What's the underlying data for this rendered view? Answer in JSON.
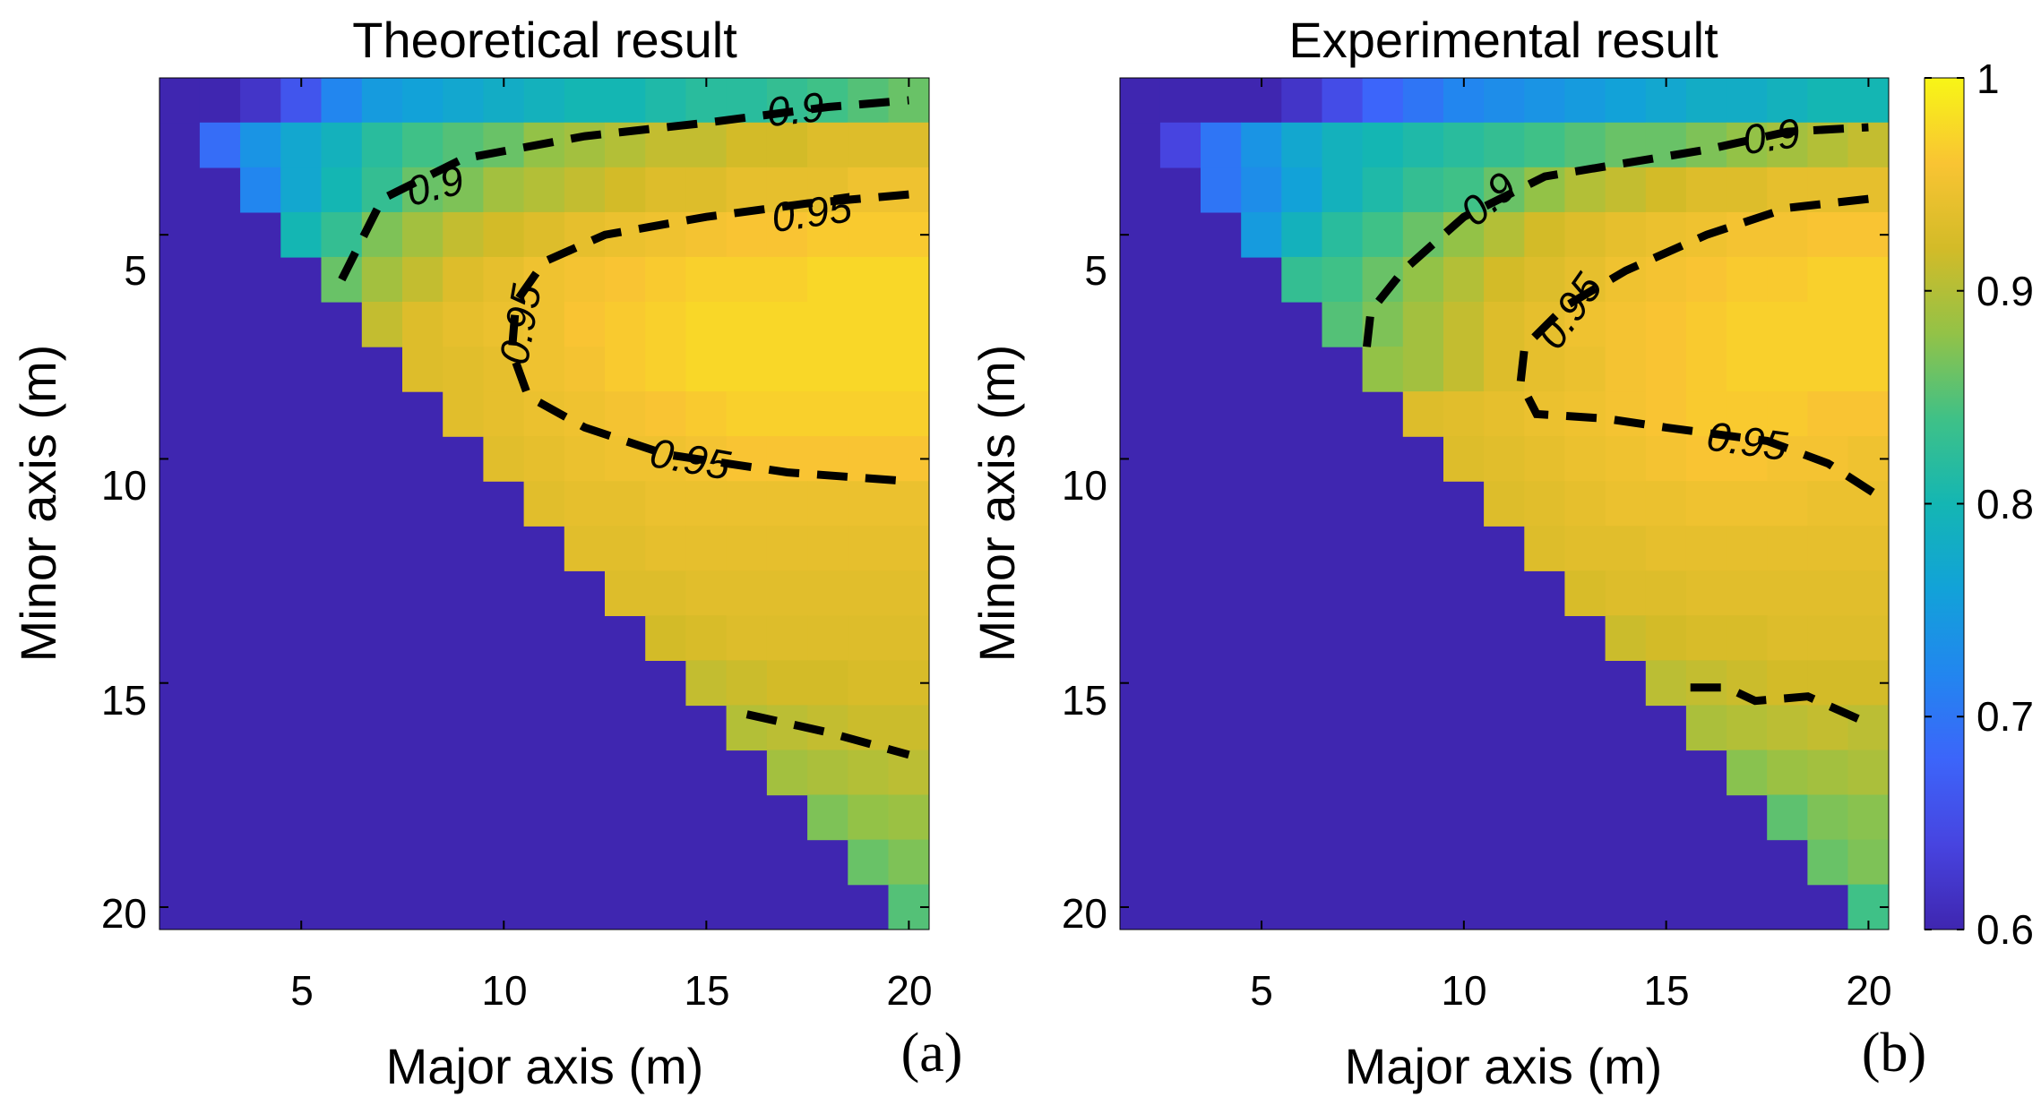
{
  "chart_data": [
    {
      "type": "heatmap",
      "title": "Theoretical result",
      "xlabel": "Major axis (m)",
      "ylabel": "Minor axis (m)",
      "panel_label": "(a)",
      "x_ticks": [
        "5",
        "10",
        "15",
        "20"
      ],
      "y_ticks": [
        "5",
        "10",
        "15",
        "20"
      ],
      "xlim": [
        1.5,
        20.5
      ],
      "ylim": [
        20.5,
        1.5
      ],
      "y_reversed": true,
      "below_diagonal_value": 0.6,
      "row_values": {
        "2": [
          0.6,
          0.6,
          0.62,
          0.66,
          0.72,
          0.75,
          0.76,
          0.77,
          0.78,
          0.79,
          0.8,
          0.8,
          0.81,
          0.82,
          0.82,
          0.83,
          0.84,
          0.85,
          0.86
        ],
        "3": [
          0.69,
          0.74,
          0.77,
          0.79,
          0.82,
          0.84,
          0.85,
          0.86,
          0.88,
          0.89,
          0.9,
          0.91,
          0.91,
          0.92,
          0.92,
          0.93,
          0.93,
          0.93
        ],
        "4": [
          0.72,
          0.77,
          0.8,
          0.83,
          0.86,
          0.87,
          0.89,
          0.9,
          0.91,
          0.92,
          0.93,
          0.93,
          0.94,
          0.94,
          0.94,
          0.95,
          0.95
        ],
        "5": [
          0.8,
          0.83,
          0.87,
          0.89,
          0.91,
          0.92,
          0.93,
          0.94,
          0.945,
          0.95,
          0.955,
          0.96,
          0.96,
          0.965,
          0.965,
          0.965
        ],
        "6": [
          0.86,
          0.89,
          0.91,
          0.93,
          0.94,
          0.95,
          0.955,
          0.96,
          0.965,
          0.97,
          0.97,
          0.97,
          0.975,
          0.975,
          0.975
        ],
        "7": [
          0.91,
          0.93,
          0.94,
          0.945,
          0.95,
          0.96,
          0.965,
          0.97,
          0.975,
          0.975,
          0.975,
          0.975,
          0.975,
          0.975
        ],
        "8": [
          0.93,
          0.935,
          0.94,
          0.95,
          0.955,
          0.965,
          0.97,
          0.975,
          0.975,
          0.975,
          0.975,
          0.975,
          0.975
        ],
        "9": [
          0.935,
          0.94,
          0.945,
          0.95,
          0.955,
          0.96,
          0.965,
          0.97,
          0.97,
          0.97,
          0.97,
          0.97
        ],
        "10": [
          0.935,
          0.94,
          0.945,
          0.95,
          0.95,
          0.955,
          0.96,
          0.96,
          0.96,
          0.96,
          0.96
        ],
        "11": [
          0.935,
          0.94,
          0.94,
          0.945,
          0.945,
          0.945,
          0.945,
          0.945,
          0.945,
          0.945
        ],
        "12": [
          0.935,
          0.935,
          0.94,
          0.94,
          0.94,
          0.94,
          0.94,
          0.94,
          0.94
        ],
        "13": [
          0.93,
          0.93,
          0.935,
          0.935,
          0.935,
          0.935,
          0.935,
          0.935
        ],
        "14": [
          0.92,
          0.925,
          0.93,
          0.93,
          0.93,
          0.93,
          0.93
        ],
        "15": [
          0.91,
          0.915,
          0.92,
          0.92,
          0.925,
          0.925
        ],
        "16": [
          0.9,
          0.905,
          0.91,
          0.915,
          0.915
        ],
        "17": [
          0.89,
          0.895,
          0.9,
          0.905
        ],
        "18": [
          0.87,
          0.88,
          0.885
        ],
        "19": [
          0.86,
          0.87
        ],
        "20": [
          0.85
        ]
      },
      "contours": [
        {
          "label": "0.9",
          "points": [
            [
              6,
              6
            ],
            [
              7,
              4.2
            ],
            [
              9,
              3.3
            ],
            [
              12,
              2.8
            ],
            [
              15,
              2.5
            ],
            [
              18,
              2.15
            ],
            [
              20,
              2
            ]
          ]
        },
        {
          "label": "0.95",
          "points": [
            [
              20,
              4.1
            ],
            [
              17.5,
              4.3
            ],
            [
              15,
              4.6
            ],
            [
              12.5,
              5
            ],
            [
              11,
              5.6
            ],
            [
              10.3,
              6.5
            ],
            [
              10.2,
              7.6
            ],
            [
              10.6,
              8.6
            ],
            [
              12,
              9.3
            ],
            [
              14,
              9.9
            ],
            [
              17,
              10.3
            ],
            [
              20,
              10.5
            ]
          ]
        },
        {
          "label": "0.95",
          "points": [
            [
              16,
              15.7
            ],
            [
              18,
              16.1
            ],
            [
              20,
              16.6
            ]
          ]
        }
      ],
      "contour_labels": [
        {
          "text": "0.9",
          "x": 8.3,
          "y": 3.9,
          "angle": -14
        },
        {
          "text": "0.9",
          "x": 17.2,
          "y": 2.2,
          "angle": -6
        },
        {
          "text": "0.95",
          "x": 17.6,
          "y": 4.5,
          "angle": -8
        },
        {
          "text": "0.95",
          "x": 10.4,
          "y": 7.0,
          "angle": -80
        },
        {
          "text": "0.95",
          "x": 14.6,
          "y": 10.0,
          "angle": 10
        }
      ]
    },
    {
      "type": "heatmap",
      "title": "Experimental result",
      "xlabel": "Major axis (m)",
      "ylabel": "Minor axis (m)",
      "panel_label": "(b)",
      "x_ticks": [
        "5",
        "10",
        "15",
        "20"
      ],
      "y_ticks": [
        "5",
        "10",
        "15",
        "20"
      ],
      "xlim": [
        1.5,
        20.5
      ],
      "ylim": [
        20.5,
        1.5
      ],
      "y_reversed": true,
      "below_diagonal_value": 0.6,
      "row_values": {
        "2": [
          0.6,
          0.6,
          0.6,
          0.6,
          0.62,
          0.65,
          0.68,
          0.7,
          0.72,
          0.73,
          0.74,
          0.75,
          0.76,
          0.77,
          0.78,
          0.78,
          0.79,
          0.8,
          0.8
        ],
        "3": [
          0.64,
          0.7,
          0.74,
          0.77,
          0.79,
          0.8,
          0.81,
          0.82,
          0.83,
          0.84,
          0.85,
          0.86,
          0.86,
          0.87,
          0.88,
          0.89,
          0.9,
          0.91
        ],
        "4": [
          0.7,
          0.73,
          0.76,
          0.79,
          0.81,
          0.83,
          0.84,
          0.86,
          0.88,
          0.9,
          0.91,
          0.92,
          0.93,
          0.93,
          0.94,
          0.94,
          0.94
        ],
        "5": [
          0.75,
          0.79,
          0.82,
          0.84,
          0.86,
          0.88,
          0.9,
          0.92,
          0.93,
          0.94,
          0.945,
          0.95,
          0.955,
          0.955,
          0.96,
          0.96
        ],
        "6": [
          0.83,
          0.84,
          0.86,
          0.88,
          0.9,
          0.92,
          0.93,
          0.94,
          0.95,
          0.955,
          0.96,
          0.965,
          0.965,
          0.97,
          0.97
        ],
        "7": [
          0.85,
          0.87,
          0.89,
          0.91,
          0.93,
          0.94,
          0.95,
          0.955,
          0.96,
          0.965,
          0.97,
          0.97,
          0.97,
          0.97
        ],
        "8": [
          0.88,
          0.89,
          0.91,
          0.93,
          0.94,
          0.945,
          0.955,
          0.96,
          0.965,
          0.97,
          0.97,
          0.97,
          0.97
        ],
        "9": [
          0.93,
          0.935,
          0.94,
          0.945,
          0.95,
          0.955,
          0.96,
          0.965,
          0.965,
          0.965,
          0.96,
          0.96
        ],
        "10": [
          0.93,
          0.935,
          0.94,
          0.945,
          0.95,
          0.955,
          0.96,
          0.96,
          0.955,
          0.955,
          0.95
        ],
        "11": [
          0.93,
          0.935,
          0.94,
          0.945,
          0.945,
          0.95,
          0.95,
          0.95,
          0.945,
          0.945
        ],
        "12": [
          0.93,
          0.935,
          0.935,
          0.94,
          0.94,
          0.94,
          0.94,
          0.94,
          0.94
        ],
        "13": [
          0.925,
          0.93,
          0.93,
          0.935,
          0.935,
          0.935,
          0.935,
          0.935
        ],
        "14": [
          0.915,
          0.92,
          0.925,
          0.925,
          0.93,
          0.93,
          0.93
        ],
        "15": [
          0.905,
          0.91,
          0.915,
          0.92,
          0.92,
          0.92
        ],
        "16": [
          0.895,
          0.9,
          0.905,
          0.91,
          0.905
        ],
        "17": [
          0.875,
          0.885,
          0.89,
          0.895
        ],
        "18": [
          0.855,
          0.87,
          0.875
        ],
        "19": [
          0.86,
          0.87
        ],
        "20": [
          0.84
        ]
      },
      "contours": [
        {
          "label": "0.9",
          "points": [
            [
              7.6,
              7.5
            ],
            [
              7.7,
              6.7
            ],
            [
              8.5,
              5.8
            ],
            [
              10,
              4.6
            ],
            [
              12,
              3.7
            ],
            [
              14,
              3.4
            ],
            [
              16,
              3.1
            ],
            [
              18,
              2.7
            ],
            [
              20,
              2.6
            ]
          ]
        },
        {
          "label": "0.95",
          "points": [
            [
              20,
              4.2
            ],
            [
              18,
              4.4
            ],
            [
              16,
              5
            ],
            [
              14,
              5.8
            ],
            [
              12.5,
              6.6
            ],
            [
              11.5,
              7.5
            ],
            [
              11.4,
              8.3
            ],
            [
              11.8,
              9
            ],
            [
              13.5,
              9.1
            ],
            [
              15,
              9.3
            ],
            [
              17.5,
              9.6
            ],
            [
              19,
              10.1
            ],
            [
              20.2,
              10.8
            ]
          ]
        },
        {
          "label": "0.95",
          "points": [
            [
              15.6,
              15.1
            ],
            [
              16.5,
              15.1
            ],
            [
              17.2,
              15.4
            ],
            [
              18.5,
              15.3
            ],
            [
              20,
              15.9
            ]
          ]
        }
      ],
      "contour_labels": [
        {
          "text": "0.9",
          "x": 10.6,
          "y": 4.2,
          "angle": -40
        },
        {
          "text": "0.9",
          "x": 17.6,
          "y": 2.8,
          "angle": -8
        },
        {
          "text": "0.95",
          "x": 12.6,
          "y": 6.7,
          "angle": -55
        },
        {
          "text": "0.95",
          "x": 17.0,
          "y": 9.6,
          "angle": 8
        }
      ]
    }
  ],
  "colorbar": {
    "range": [
      0.6,
      1
    ],
    "ticks": [
      "0.6",
      "0.7",
      "0.8",
      "0.9",
      "1"
    ]
  }
}
